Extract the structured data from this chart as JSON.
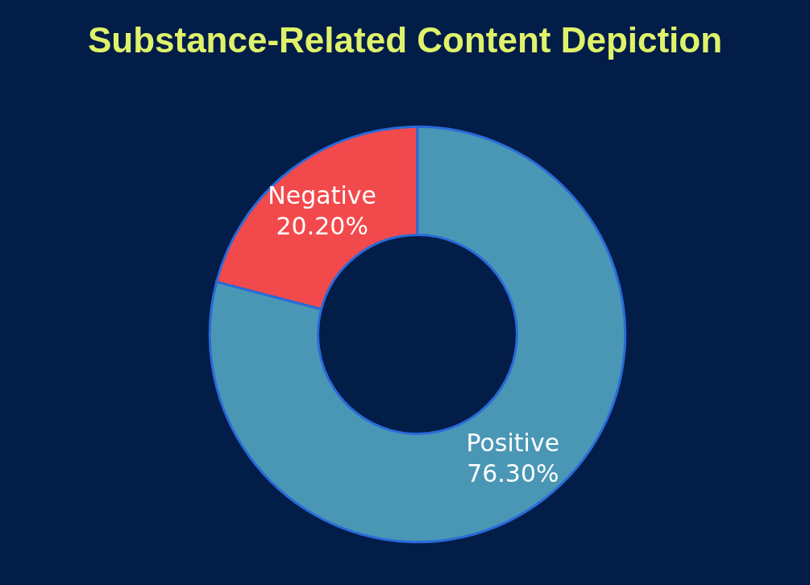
{
  "chart_data": {
    "type": "donut",
    "title": "Substance-Related Content Depiction",
    "categories": [
      "Negative",
      "Positive"
    ],
    "values": [
      20.2,
      76.3
    ],
    "value_labels": [
      "20.20%",
      "76.30%"
    ],
    "colors": [
      "#f24a4c",
      "#4a97b5"
    ]
  }
}
